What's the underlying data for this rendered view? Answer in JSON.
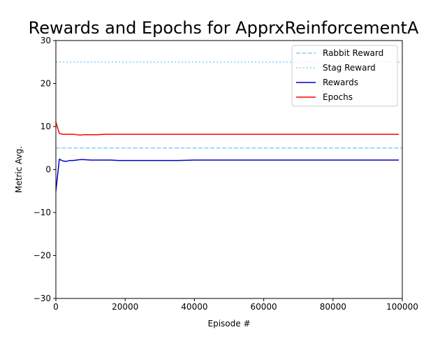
{
  "chart_data": {
    "type": "line",
    "title": "Rewards and Epochs for ApprxReinforcementA",
    "xlabel": "Episode #",
    "ylabel": "Metric Avg.",
    "xlim": [
      0,
      100000
    ],
    "ylim": [
      -30,
      30
    ],
    "xticks": [
      0,
      20000,
      40000,
      60000,
      80000,
      100000
    ],
    "xtick_labels": [
      "0",
      "20000",
      "40000",
      "60000",
      "80000",
      "100000"
    ],
    "yticks": [
      -30,
      -20,
      -10,
      0,
      10,
      20,
      30
    ],
    "ytick_labels": [
      "−30",
      "−20",
      "−10",
      "0",
      "10",
      "20",
      "30"
    ],
    "grid": false,
    "legend_position": "top-right",
    "series": [
      {
        "name": "Rabbit Reward",
        "color": "#87cefa",
        "style": "dashed",
        "x": [
          0,
          100000
        ],
        "y": [
          5,
          5
        ]
      },
      {
        "name": "Stag Reward",
        "color": "#87cefa",
        "style": "dotted",
        "x": [
          0,
          100000
        ],
        "y": [
          25,
          25
        ]
      },
      {
        "name": "Rewards",
        "color": "#0000cd",
        "style": "solid",
        "x": [
          0,
          1000,
          2000,
          3000,
          4000,
          5000,
          6000,
          7000,
          8000,
          10000,
          12000,
          14000,
          16000,
          18000,
          20000,
          25000,
          30000,
          35000,
          40000,
          45000,
          50000,
          55000,
          60000,
          65000,
          70000,
          75000,
          80000,
          85000,
          90000,
          95000,
          99000
        ],
        "y": [
          -5,
          2.4,
          2.0,
          1.9,
          2.1,
          2.1,
          2.2,
          2.3,
          2.3,
          2.2,
          2.2,
          2.2,
          2.2,
          2.1,
          2.1,
          2.1,
          2.1,
          2.1,
          2.2,
          2.2,
          2.2,
          2.2,
          2.2,
          2.2,
          2.2,
          2.2,
          2.2,
          2.2,
          2.2,
          2.2,
          2.2
        ]
      },
      {
        "name": "Epochs",
        "color": "#ff0000",
        "style": "solid",
        "x": [
          0,
          1000,
          2000,
          3000,
          4000,
          5000,
          6000,
          7000,
          8000,
          10000,
          12000,
          14000,
          16000,
          18000,
          20000,
          25000,
          30000,
          35000,
          40000,
          45000,
          50000,
          55000,
          60000,
          65000,
          70000,
          75000,
          80000,
          85000,
          90000,
          95000,
          99000
        ],
        "y": [
          11,
          8.4,
          8.2,
          8.2,
          8.2,
          8.2,
          8.1,
          8.0,
          8.1,
          8.1,
          8.1,
          8.2,
          8.2,
          8.2,
          8.2,
          8.2,
          8.2,
          8.2,
          8.2,
          8.2,
          8.2,
          8.2,
          8.2,
          8.2,
          8.2,
          8.2,
          8.2,
          8.2,
          8.2,
          8.2,
          8.2
        ]
      }
    ]
  }
}
